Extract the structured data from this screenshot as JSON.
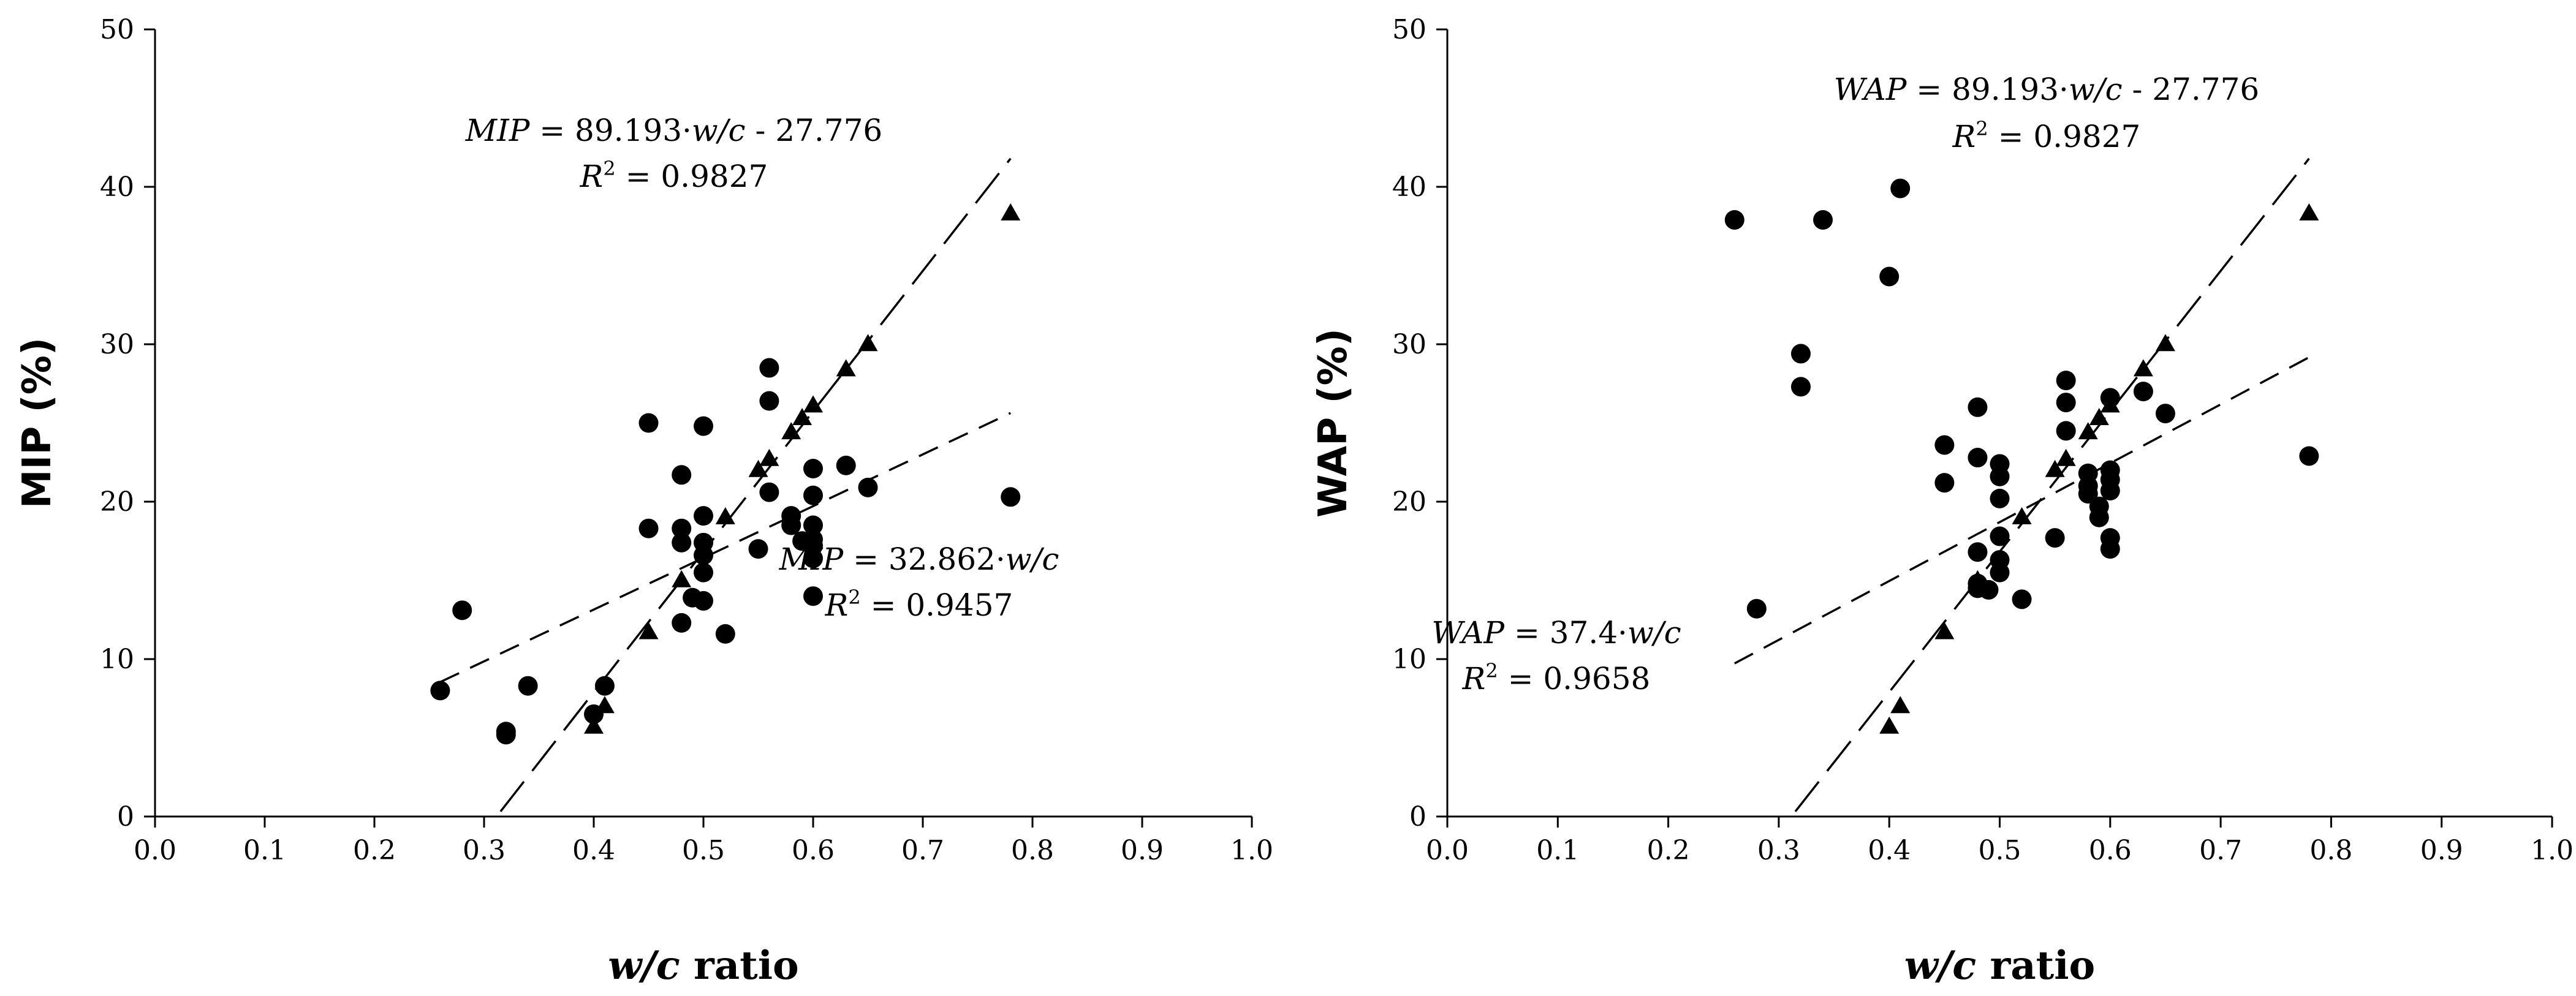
{
  "chart_data": [
    {
      "type": "scatter",
      "id": "mip",
      "xlabel_italic": "w/c",
      "xlabel_suffix": " ratio",
      "ylabel": "MIP (%)",
      "xlim": [
        0,
        1
      ],
      "ylim": [
        0,
        50
      ],
      "xticks": [
        "0.0",
        "0.1",
        "0.2",
        "0.3",
        "0.4",
        "0.5",
        "0.6",
        "0.7",
        "0.8",
        "0.9",
        "1.0"
      ],
      "yticks": [
        "0",
        "10",
        "20",
        "30",
        "40",
        "50"
      ],
      "series": [
        {
          "name": "circles",
          "marker": "circle",
          "points": [
            [
              0.26,
              8.0
            ],
            [
              0.28,
              13.1
            ],
            [
              0.32,
              5.4
            ],
            [
              0.32,
              5.2
            ],
            [
              0.34,
              8.3
            ],
            [
              0.4,
              6.5
            ],
            [
              0.41,
              8.3
            ],
            [
              0.45,
              25.0
            ],
            [
              0.45,
              18.3
            ],
            [
              0.48,
              21.7
            ],
            [
              0.48,
              18.3
            ],
            [
              0.48,
              17.4
            ],
            [
              0.48,
              12.3
            ],
            [
              0.49,
              13.9
            ],
            [
              0.5,
              24.8
            ],
            [
              0.5,
              19.1
            ],
            [
              0.5,
              17.4
            ],
            [
              0.5,
              16.6
            ],
            [
              0.5,
              15.5
            ],
            [
              0.5,
              13.7
            ],
            [
              0.52,
              11.6
            ],
            [
              0.55,
              17.0
            ],
            [
              0.56,
              28.5
            ],
            [
              0.56,
              26.4
            ],
            [
              0.56,
              20.6
            ],
            [
              0.58,
              19.1
            ],
            [
              0.58,
              18.5
            ],
            [
              0.59,
              17.5
            ],
            [
              0.6,
              22.1
            ],
            [
              0.6,
              20.4
            ],
            [
              0.6,
              18.5
            ],
            [
              0.6,
              17.6
            ],
            [
              0.6,
              17.2
            ],
            [
              0.6,
              16.4
            ],
            [
              0.6,
              14.0
            ],
            [
              0.63,
              22.3
            ],
            [
              0.65,
              20.9
            ],
            [
              0.78,
              20.3
            ]
          ]
        },
        {
          "name": "triangles",
          "marker": "triangle",
          "points": [
            [
              0.4,
              5.7
            ],
            [
              0.41,
              7.0
            ],
            [
              0.45,
              11.7
            ],
            [
              0.48,
              15.0
            ],
            [
              0.52,
              19.0
            ],
            [
              0.55,
              22.0
            ],
            [
              0.56,
              22.7
            ],
            [
              0.58,
              24.4
            ],
            [
              0.59,
              25.3
            ],
            [
              0.6,
              26.1
            ],
            [
              0.63,
              28.4
            ],
            [
              0.65,
              30.0
            ],
            [
              0.78,
              38.3
            ]
          ]
        }
      ],
      "fits": [
        {
          "slope": 89.193,
          "intercept": -27.776,
          "x_range": [
            0.315,
            0.78
          ],
          "dash": "long"
        },
        {
          "slope": 32.862,
          "intercept": 0,
          "x_range": [
            0.26,
            0.78
          ],
          "dash": "short"
        }
      ],
      "equations": [
        {
          "var": "MIP",
          "rhs": " = 89.193·",
          "wc": "w/c",
          "tail": " - 27.776",
          "r2": " = 0.9827"
        },
        {
          "var": "MIP",
          "rhs": " = 32.862·",
          "wc": "w/c",
          "tail": "",
          "r2": " = 0.9457"
        }
      ]
    },
    {
      "type": "scatter",
      "id": "wap",
      "xlabel_italic": "w/c",
      "xlabel_suffix": " ratio",
      "ylabel": "WAP (%)",
      "xlim": [
        0,
        1
      ],
      "ylim": [
        0,
        50
      ],
      "xticks": [
        "0.0",
        "0.1",
        "0.2",
        "0.3",
        "0.4",
        "0.5",
        "0.6",
        "0.7",
        "0.8",
        "0.9",
        "1.0"
      ],
      "yticks": [
        "0",
        "10",
        "20",
        "30",
        "40",
        "50"
      ],
      "series": [
        {
          "name": "circles",
          "marker": "circle",
          "points": [
            [
              0.26,
              37.9
            ],
            [
              0.28,
              13.2
            ],
            [
              0.32,
              29.4
            ],
            [
              0.32,
              27.3
            ],
            [
              0.34,
              37.9
            ],
            [
              0.4,
              34.3
            ],
            [
              0.41,
              39.9
            ],
            [
              0.45,
              23.6
            ],
            [
              0.45,
              21.2
            ],
            [
              0.48,
              26.0
            ],
            [
              0.48,
              22.8
            ],
            [
              0.48,
              16.8
            ],
            [
              0.48,
              14.8
            ],
            [
              0.48,
              14.5
            ],
            [
              0.49,
              14.4
            ],
            [
              0.5,
              22.4
            ],
            [
              0.5,
              21.6
            ],
            [
              0.5,
              20.2
            ],
            [
              0.5,
              17.8
            ],
            [
              0.5,
              16.3
            ],
            [
              0.5,
              15.5
            ],
            [
              0.52,
              13.8
            ],
            [
              0.55,
              17.7
            ],
            [
              0.56,
              27.7
            ],
            [
              0.56,
              26.3
            ],
            [
              0.56,
              24.5
            ],
            [
              0.58,
              21.8
            ],
            [
              0.58,
              21.0
            ],
            [
              0.58,
              20.5
            ],
            [
              0.59,
              19.7
            ],
            [
              0.59,
              19.0
            ],
            [
              0.6,
              26.6
            ],
            [
              0.6,
              22.0
            ],
            [
              0.6,
              21.4
            ],
            [
              0.6,
              20.7
            ],
            [
              0.6,
              17.7
            ],
            [
              0.6,
              17.0
            ],
            [
              0.63,
              27.0
            ],
            [
              0.65,
              25.6
            ],
            [
              0.78,
              22.9
            ]
          ]
        },
        {
          "name": "triangles",
          "marker": "triangle",
          "points": [
            [
              0.4,
              5.7
            ],
            [
              0.41,
              7.0
            ],
            [
              0.45,
              11.7
            ],
            [
              0.48,
              15.0
            ],
            [
              0.52,
              19.0
            ],
            [
              0.55,
              22.0
            ],
            [
              0.56,
              22.7
            ],
            [
              0.58,
              24.4
            ],
            [
              0.59,
              25.3
            ],
            [
              0.6,
              26.1
            ],
            [
              0.63,
              28.4
            ],
            [
              0.65,
              30.0
            ],
            [
              0.78,
              38.3
            ]
          ]
        }
      ],
      "fits": [
        {
          "slope": 89.193,
          "intercept": -27.776,
          "x_range": [
            0.315,
            0.78
          ],
          "dash": "long"
        },
        {
          "slope": 37.4,
          "intercept": 0,
          "x_range": [
            0.26,
            0.78
          ],
          "dash": "short"
        }
      ],
      "equations": [
        {
          "var": "WAP",
          "rhs": " = 89.193·",
          "wc": "w/c",
          "tail": " - 27.776",
          "r2": " = 0.9827"
        },
        {
          "var": "WAP",
          "rhs": " = 37.4·",
          "wc": "w/c",
          "tail": "",
          "r2": " = 0.9658"
        }
      ]
    }
  ]
}
